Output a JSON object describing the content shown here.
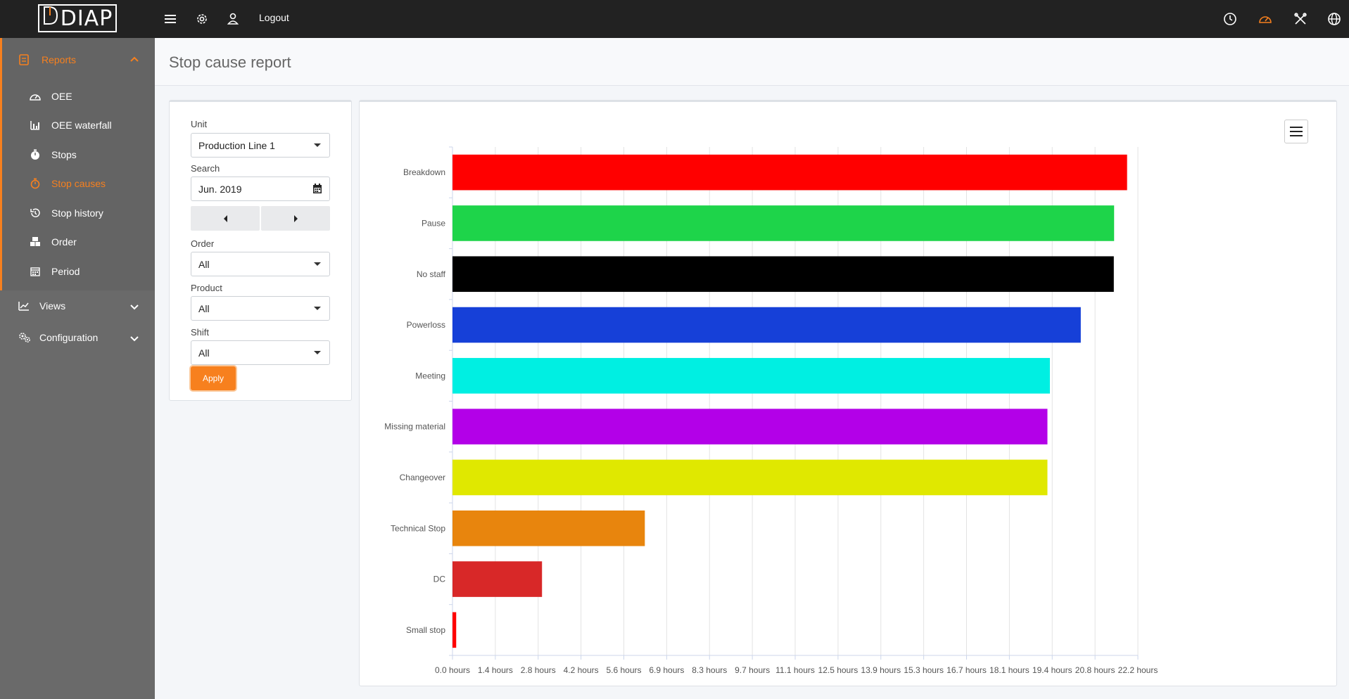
{
  "topbar": {
    "logo_text": "DIAP",
    "logout_label": "Logout",
    "left_icons": [
      "menu-icon",
      "gear-icon",
      "user-icon"
    ],
    "right_icons": [
      "clock-icon",
      "speedometer-icon",
      "tools-icon",
      "globe-icon"
    ],
    "accent_color": "#f7801e"
  },
  "sidebar": {
    "reports": {
      "label": "Reports",
      "items": [
        {
          "label": "OEE",
          "icon": "gauge-icon"
        },
        {
          "label": "OEE waterfall",
          "icon": "bar-chart-icon"
        },
        {
          "label": "Stops",
          "icon": "stopwatch-icon"
        },
        {
          "label": "Stop causes",
          "icon": "stopwatch-icon",
          "active": true
        },
        {
          "label": "Stop history",
          "icon": "history-icon"
        },
        {
          "label": "Order",
          "icon": "boxes-icon"
        },
        {
          "label": "Period",
          "icon": "calendar-icon"
        }
      ]
    },
    "views_label": "Views",
    "configuration_label": "Configuration"
  },
  "page": {
    "title": "Stop cause report"
  },
  "filter": {
    "unit_label": "Unit",
    "unit_value": "Production Line 1",
    "search_label": "Search",
    "search_value": "Jun. 2019",
    "order_label": "Order",
    "order_value": "All",
    "product_label": "Product",
    "product_value": "All",
    "shift_label": "Shift",
    "shift_value": "All",
    "apply_label": "Apply"
  },
  "chart_data": {
    "type": "bar",
    "orientation": "horizontal",
    "categories": [
      "Breakdown",
      "Pause",
      "No staff",
      "Powerloss",
      "Meeting",
      "Missing material",
      "Changeover",
      "Technical Stop",
      "DC",
      "Small stop"
    ],
    "values": [
      21.85,
      21.43,
      21.42,
      20.35,
      19.35,
      19.27,
      19.27,
      6.23,
      2.9,
      0.12
    ],
    "colors": [
      "#ff0000",
      "#1ed44a",
      "#000000",
      "#1640d8",
      "#00efe2",
      "#b300e8",
      "#e0e800",
      "#e8850d",
      "#d82828",
      "#ff0000"
    ],
    "xticks": [
      "0.0 hours",
      "1.4 hours",
      "2.8 hours",
      "4.2 hours",
      "5.6 hours",
      "6.9 hours",
      "8.3 hours",
      "9.7 hours",
      "11.1 hours",
      "12.5 hours",
      "13.9 hours",
      "15.3 hours",
      "16.7 hours",
      "18.1 hours",
      "19.4 hours",
      "20.8 hours",
      "22.2 hours"
    ],
    "xlim": [
      0,
      22.2
    ],
    "grid": true
  }
}
